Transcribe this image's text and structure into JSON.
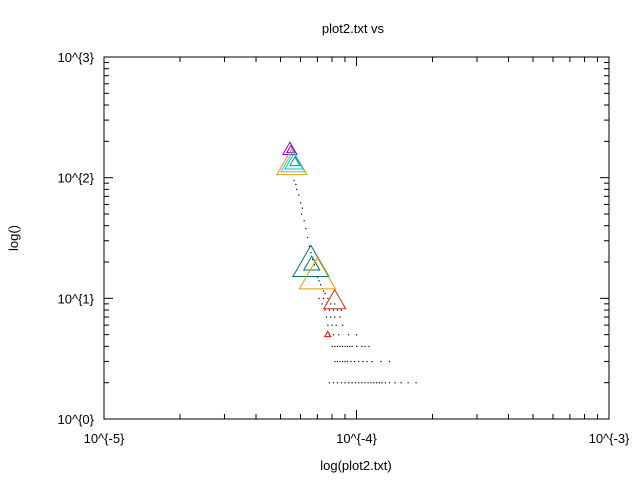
{
  "chart_data": {
    "type": "scatter",
    "title": "plot2.txt vs",
    "xlabel": "log(plot2.txt)",
    "ylabel": "log()",
    "x_scale": "log",
    "y_scale": "log",
    "xlim": [
      1e-05,
      0.001
    ],
    "ylim": [
      1,
      1000
    ],
    "x_ticks": [
      {
        "value": 1e-05,
        "label": "10^{-5}"
      },
      {
        "value": 0.0001,
        "label": "10^{-4}"
      },
      {
        "value": 0.001,
        "label": "10^{-3}"
      }
    ],
    "y_ticks": [
      {
        "value": 1,
        "label": "10^{0}"
      },
      {
        "value": 10,
        "label": "10^{1}"
      },
      {
        "value": 100,
        "label": "10^{2}"
      },
      {
        "value": 1000,
        "label": "10^{3}"
      }
    ],
    "grid": false,
    "legend": "none",
    "dots": {
      "color": "#000000",
      "points": [
        [
          5.65e-05,
          95
        ],
        [
          5.75e-05,
          88
        ],
        [
          5.8e-05,
          80
        ],
        [
          5.9e-05,
          72
        ],
        [
          6e-05,
          62
        ],
        [
          6.1e-05,
          56
        ],
        [
          6.05e-05,
          50
        ],
        [
          6.2e-05,
          44
        ],
        [
          6.3e-05,
          38
        ],
        [
          6.4e-05,
          32
        ],
        [
          6.5e-05,
          27
        ],
        [
          6.6e-05,
          24
        ],
        [
          6.7e-05,
          21
        ],
        [
          6.8e-05,
          19
        ],
        [
          7e-05,
          15
        ],
        [
          7.1e-05,
          14
        ],
        [
          7.2e-05,
          13
        ],
        [
          7.3e-05,
          12
        ],
        [
          7.4e-05,
          11.5
        ],
        [
          7.5e-05,
          11
        ],
        [
          7.1e-05,
          10
        ],
        [
          7.4e-05,
          10
        ],
        [
          7.7e-05,
          10
        ],
        [
          7.3e-05,
          9
        ],
        [
          7.6e-05,
          9
        ],
        [
          7.9e-05,
          9
        ],
        [
          8.2e-05,
          9
        ],
        [
          7.5e-05,
          8
        ],
        [
          7.8e-05,
          8
        ],
        [
          8.1e-05,
          8
        ],
        [
          8.4e-05,
          8
        ],
        [
          8.7e-05,
          8
        ],
        [
          7.6e-05,
          7
        ],
        [
          7.9e-05,
          7
        ],
        [
          8.2e-05,
          7
        ],
        [
          8.6e-05,
          7
        ],
        [
          7.7e-05,
          6
        ],
        [
          8e-05,
          6
        ],
        [
          8.3e-05,
          6
        ],
        [
          8.8e-05,
          6
        ],
        [
          7.8e-05,
          5
        ],
        [
          8.1e-05,
          5
        ],
        [
          8.5e-05,
          5
        ],
        [
          9.3e-05,
          5
        ],
        [
          0.0001,
          5
        ],
        [
          8e-05,
          4
        ],
        [
          8.2e-05,
          4
        ],
        [
          8.4e-05,
          4
        ],
        [
          8.6e-05,
          4
        ],
        [
          8.8e-05,
          4
        ],
        [
          9e-05,
          4
        ],
        [
          9.2e-05,
          4
        ],
        [
          9.4e-05,
          4
        ],
        [
          9.6e-05,
          4
        ],
        [
          0.0001,
          4
        ],
        [
          0.000105,
          4
        ],
        [
          0.000108,
          4
        ],
        [
          0.000112,
          4
        ],
        [
          8.2e-05,
          3
        ],
        [
          8.4e-05,
          3
        ],
        [
          8.6e-05,
          3
        ],
        [
          8.8e-05,
          3
        ],
        [
          9e-05,
          3
        ],
        [
          9.2e-05,
          3
        ],
        [
          9.5e-05,
          3
        ],
        [
          9.8e-05,
          3
        ],
        [
          0.000102,
          3
        ],
        [
          0.000106,
          3
        ],
        [
          0.00011,
          3
        ],
        [
          0.000115,
          3
        ],
        [
          0.000125,
          3
        ],
        [
          0.000135,
          3
        ],
        [
          7.8e-05,
          2
        ],
        [
          8.1e-05,
          2
        ],
        [
          8.4e-05,
          2
        ],
        [
          8.7e-05,
          2
        ],
        [
          9e-05,
          2
        ],
        [
          9.3e-05,
          2
        ],
        [
          9.6e-05,
          2
        ],
        [
          9.9e-05,
          2
        ],
        [
          0.000102,
          2
        ],
        [
          0.000105,
          2
        ],
        [
          0.000108,
          2
        ],
        [
          0.000111,
          2
        ],
        [
          0.000114,
          2
        ],
        [
          0.000117,
          2
        ],
        [
          0.00012,
          2
        ],
        [
          0.000123,
          2
        ],
        [
          0.000126,
          2
        ],
        [
          0.00013,
          2
        ],
        [
          0.000135,
          2
        ],
        [
          0.000142,
          2
        ],
        [
          0.00015,
          2
        ],
        [
          0.00016,
          2
        ],
        [
          0.000172,
          2
        ]
      ]
    },
    "markers": [
      {
        "x": 5.45e-05,
        "y": 170,
        "size": 14,
        "color": "#9400d3"
      },
      {
        "x": 5.5e-05,
        "y": 170,
        "size": 8,
        "color": "#9400d3"
      },
      {
        "x": 5.55e-05,
        "y": 128,
        "size": 30,
        "color": "#e69f00"
      },
      {
        "x": 5.6e-05,
        "y": 130,
        "size": 24,
        "color": "#56b4e9"
      },
      {
        "x": 5.65e-05,
        "y": 132,
        "size": 18,
        "color": "#00c0c0"
      },
      {
        "x": 5.7e-05,
        "y": 134,
        "size": 10,
        "color": "#009e73"
      },
      {
        "x": 6.6e-05,
        "y": 19,
        "size": 36,
        "color": "#007070"
      },
      {
        "x": 6.65e-05,
        "y": 19,
        "size": 16,
        "color": "#007070"
      },
      {
        "x": 7e-05,
        "y": 15,
        "size": 36,
        "color": "#e6a000"
      },
      {
        "x": 8.2e-05,
        "y": 9.4,
        "size": 22,
        "color": "#c83200"
      },
      {
        "x": 7.7e-05,
        "y": 5,
        "size": 6,
        "color": "#e00000"
      }
    ]
  }
}
